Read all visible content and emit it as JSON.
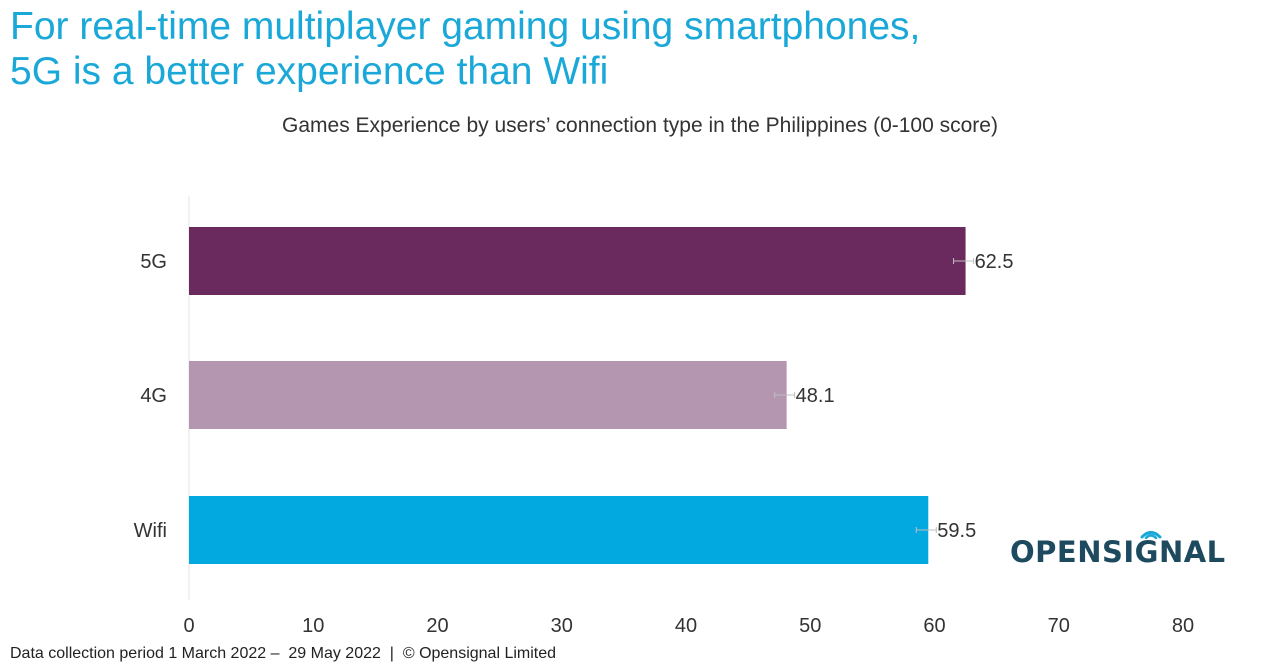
{
  "headline": {
    "line1": "For real-time multiplayer gaming using smartphones,",
    "line2": "5G is a better experience than Wifi"
  },
  "brand": {
    "logo_text": "OPENSIGNAL",
    "logo_color": "#1d4a5e",
    "accent_color": "#1aa8d8"
  },
  "footer": {
    "text": "Data collection period 1 March 2022 –  29 May 2022  |  © Opensignal Limited"
  },
  "chart_data": {
    "type": "bar",
    "orientation": "horizontal",
    "title": "Games Experience by users’ connection type in the Philippines (0-100 score)",
    "categories": [
      "5G",
      "4G",
      "Wifi"
    ],
    "values": [
      62.5,
      48.1,
      59.5
    ],
    "value_labels": [
      "62.5",
      "48.1",
      "59.5"
    ],
    "colors": [
      "#6b2a5e",
      "#b596b0",
      "#02a8e0"
    ],
    "xlim": [
      0,
      80
    ],
    "x_ticks": [
      0,
      10,
      20,
      30,
      40,
      50,
      60,
      70,
      80
    ],
    "xlabel": "",
    "ylabel": "",
    "grid": false,
    "error_bars": true,
    "legend": "none"
  }
}
